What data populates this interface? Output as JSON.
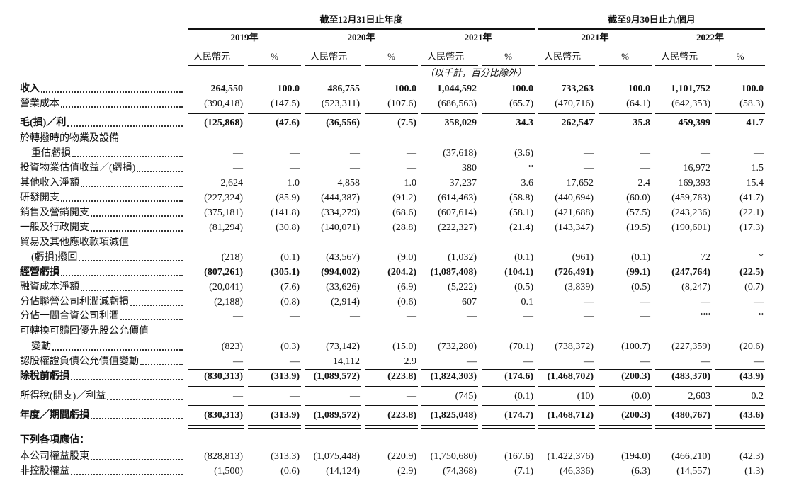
{
  "header": {
    "groups": [
      "截至12月31日止年度",
      "截至9月30日止九個月"
    ],
    "years": [
      "2019年",
      "2020年",
      "2021年",
      "2021年",
      "2022年"
    ],
    "units": [
      "人民幣元",
      "%",
      "人民幣元",
      "%",
      "人民幣元",
      "%",
      "人民幣元",
      "%",
      "人民幣元",
      "%"
    ],
    "note": "（以千計，百分比除外）"
  },
  "table": {
    "rows": [
      {
        "label": "收入",
        "values": [
          "264,550",
          "100.0",
          "486,755",
          "100.0",
          "1,044,592",
          "100.0",
          "733,263",
          "100.0",
          "1,101,752",
          "100.0"
        ]
      },
      {
        "label": "營業成本",
        "values": [
          "(390,418)",
          "(147.5)",
          "(523,311)",
          "(107.6)",
          "(686,563)",
          "(65.7)",
          "(470,716)",
          "(64.1)",
          "(642,353)",
          "(58.3)"
        ]
      },
      {
        "label": "毛(損)／利",
        "values": [
          "(125,868)",
          "(47.6)",
          "(36,556)",
          "(7.5)",
          "358,029",
          "34.3",
          "262,547",
          "35.8",
          "459,399",
          "41.7"
        ]
      },
      {
        "label": "於轉撥時的物業及設備"
      },
      {
        "label": "重估虧損",
        "values": [
          "—",
          "—",
          "—",
          "—",
          "(37,618)",
          "(3.6)",
          "—",
          "—",
          "—",
          "—"
        ]
      },
      {
        "label": "投資物業估值收益／(虧損)",
        "values": [
          "—",
          "—",
          "—",
          "—",
          "380",
          "*",
          "—",
          "—",
          "16,972",
          "1.5"
        ]
      },
      {
        "label": "其他收入淨額",
        "values": [
          "2,624",
          "1.0",
          "4,858",
          "1.0",
          "37,237",
          "3.6",
          "17,652",
          "2.4",
          "169,393",
          "15.4"
        ]
      },
      {
        "label": "研發開支",
        "values": [
          "(227,324)",
          "(85.9)",
          "(444,387)",
          "(91.2)",
          "(614,463)",
          "(58.8)",
          "(440,694)",
          "(60.0)",
          "(459,763)",
          "(41.7)"
        ]
      },
      {
        "label": "銷售及營銷開支",
        "values": [
          "(375,181)",
          "(141.8)",
          "(334,279)",
          "(68.6)",
          "(607,614)",
          "(58.1)",
          "(421,688)",
          "(57.5)",
          "(243,236)",
          "(22.1)"
        ]
      },
      {
        "label": "一般及行政開支",
        "values": [
          "(81,294)",
          "(30.8)",
          "(140,071)",
          "(28.8)",
          "(222,327)",
          "(21.4)",
          "(143,347)",
          "(19.5)",
          "(190,601)",
          "(17.3)"
        ]
      },
      {
        "label": "貿易及其他應收款項減值"
      },
      {
        "label": "(虧損)撥回",
        "values": [
          "(218)",
          "(0.1)",
          "(43,567)",
          "(9.0)",
          "(1,032)",
          "(0.1)",
          "(961)",
          "(0.1)",
          "72",
          "*"
        ]
      },
      {
        "label": "經營虧損",
        "values": [
          "(807,261)",
          "(305.1)",
          "(994,002)",
          "(204.2)",
          "(1,087,408)",
          "(104.1)",
          "(726,491)",
          "(99.1)",
          "(247,764)",
          "(22.5)"
        ]
      },
      {
        "label": "融資成本淨額",
        "values": [
          "(20,041)",
          "(7.6)",
          "(33,626)",
          "(6.9)",
          "(5,222)",
          "(0.5)",
          "(3,839)",
          "(0.5)",
          "(8,247)",
          "(0.7)"
        ]
      },
      {
        "label": "分佔聯營公司利潤減虧損",
        "values": [
          "(2,188)",
          "(0.8)",
          "(2,914)",
          "(0.6)",
          "607",
          "0.1",
          "—",
          "—",
          "—",
          "—"
        ]
      },
      {
        "label": "分佔一間合資公司利潤",
        "values": [
          "—",
          "—",
          "—",
          "—",
          "—",
          "—",
          "—",
          "—",
          "**",
          "*"
        ]
      },
      {
        "label": "可轉換可贖回優先股公允價值"
      },
      {
        "label": "變動",
        "values": [
          "(823)",
          "(0.3)",
          "(73,142)",
          "(15.0)",
          "(732,280)",
          "(70.1)",
          "(738,372)",
          "(100.7)",
          "(227,359)",
          "(20.6)"
        ]
      },
      {
        "label": "認股權證負債公允價值變動",
        "values": [
          "—",
          "—",
          "14,112",
          "2.9",
          "—",
          "—",
          "—",
          "—",
          "—",
          "—"
        ]
      },
      {
        "label": "除稅前虧損",
        "values": [
          "(830,313)",
          "(313.9)",
          "(1,089,572)",
          "(223.8)",
          "(1,824,303)",
          "(174.6)",
          "(1,468,702)",
          "(200.3)",
          "(483,370)",
          "(43.9)"
        ]
      },
      {
        "label": "所得稅(開支)／利益",
        "values": [
          "—",
          "—",
          "—",
          "—",
          "(745)",
          "(0.1)",
          "(10)",
          "(0.0)",
          "2,603",
          "0.2"
        ]
      },
      {
        "label": "年度／期間虧損",
        "values": [
          "(830,313)",
          "(313.9)",
          "(1,089,572)",
          "(223.8)",
          "(1,825,048)",
          "(174.7)",
          "(1,468,712)",
          "(200.3)",
          "(480,767)",
          "(43.6)"
        ]
      },
      {
        "label": "下列各項應佔："
      },
      {
        "label": "本公司權益股東",
        "values": [
          "(828,813)",
          "(313.3)",
          "(1,075,448)",
          "(220.9)",
          "(1,750,680)",
          "(167.6)",
          "(1,422,376)",
          "(194.0)",
          "(466,210)",
          "(42.3)"
        ]
      },
      {
        "label": "非控股權益",
        "values": [
          "(1,500)",
          "(0.6)",
          "(14,124)",
          "(2.9)",
          "(74,368)",
          "(7.1)",
          "(46,336)",
          "(6.3)",
          "(14,557)",
          "(1.3)"
        ]
      }
    ]
  }
}
